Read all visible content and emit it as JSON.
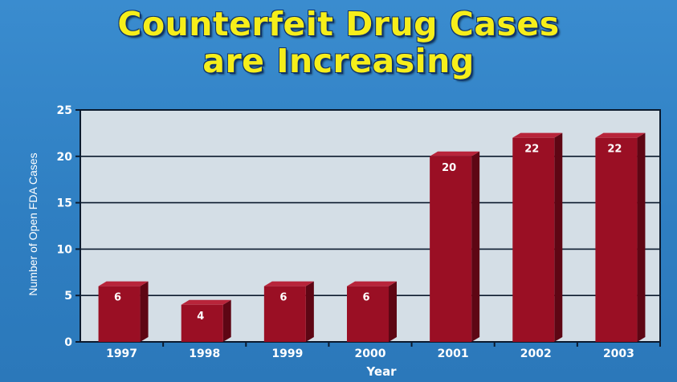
{
  "slide": {
    "title_line_1": "Counterfeit Drug Cases",
    "title_line_2": "are Increasing",
    "background_color": "#3585c8",
    "title_color": "#f6ee1a"
  },
  "chart_data": {
    "type": "bar",
    "title": "Counterfeit Drug Cases are Increasing",
    "xlabel": "Year",
    "ylabel": "Number of Open FDA Cases",
    "categories": [
      "1997",
      "1998",
      "1999",
      "2000",
      "2001",
      "2002",
      "2003"
    ],
    "values": [
      6,
      4,
      6,
      6,
      20,
      22,
      22
    ],
    "data_labels": [
      "6",
      "4",
      "6",
      "6",
      "20",
      "22",
      "22"
    ],
    "ylim": [
      0,
      25
    ],
    "yticks": [
      "0",
      "5",
      "10",
      "15",
      "20",
      "25"
    ],
    "grid": true,
    "bar_color": "#9a0f24",
    "plot_background": "#d4dee6",
    "legend": "none"
  }
}
